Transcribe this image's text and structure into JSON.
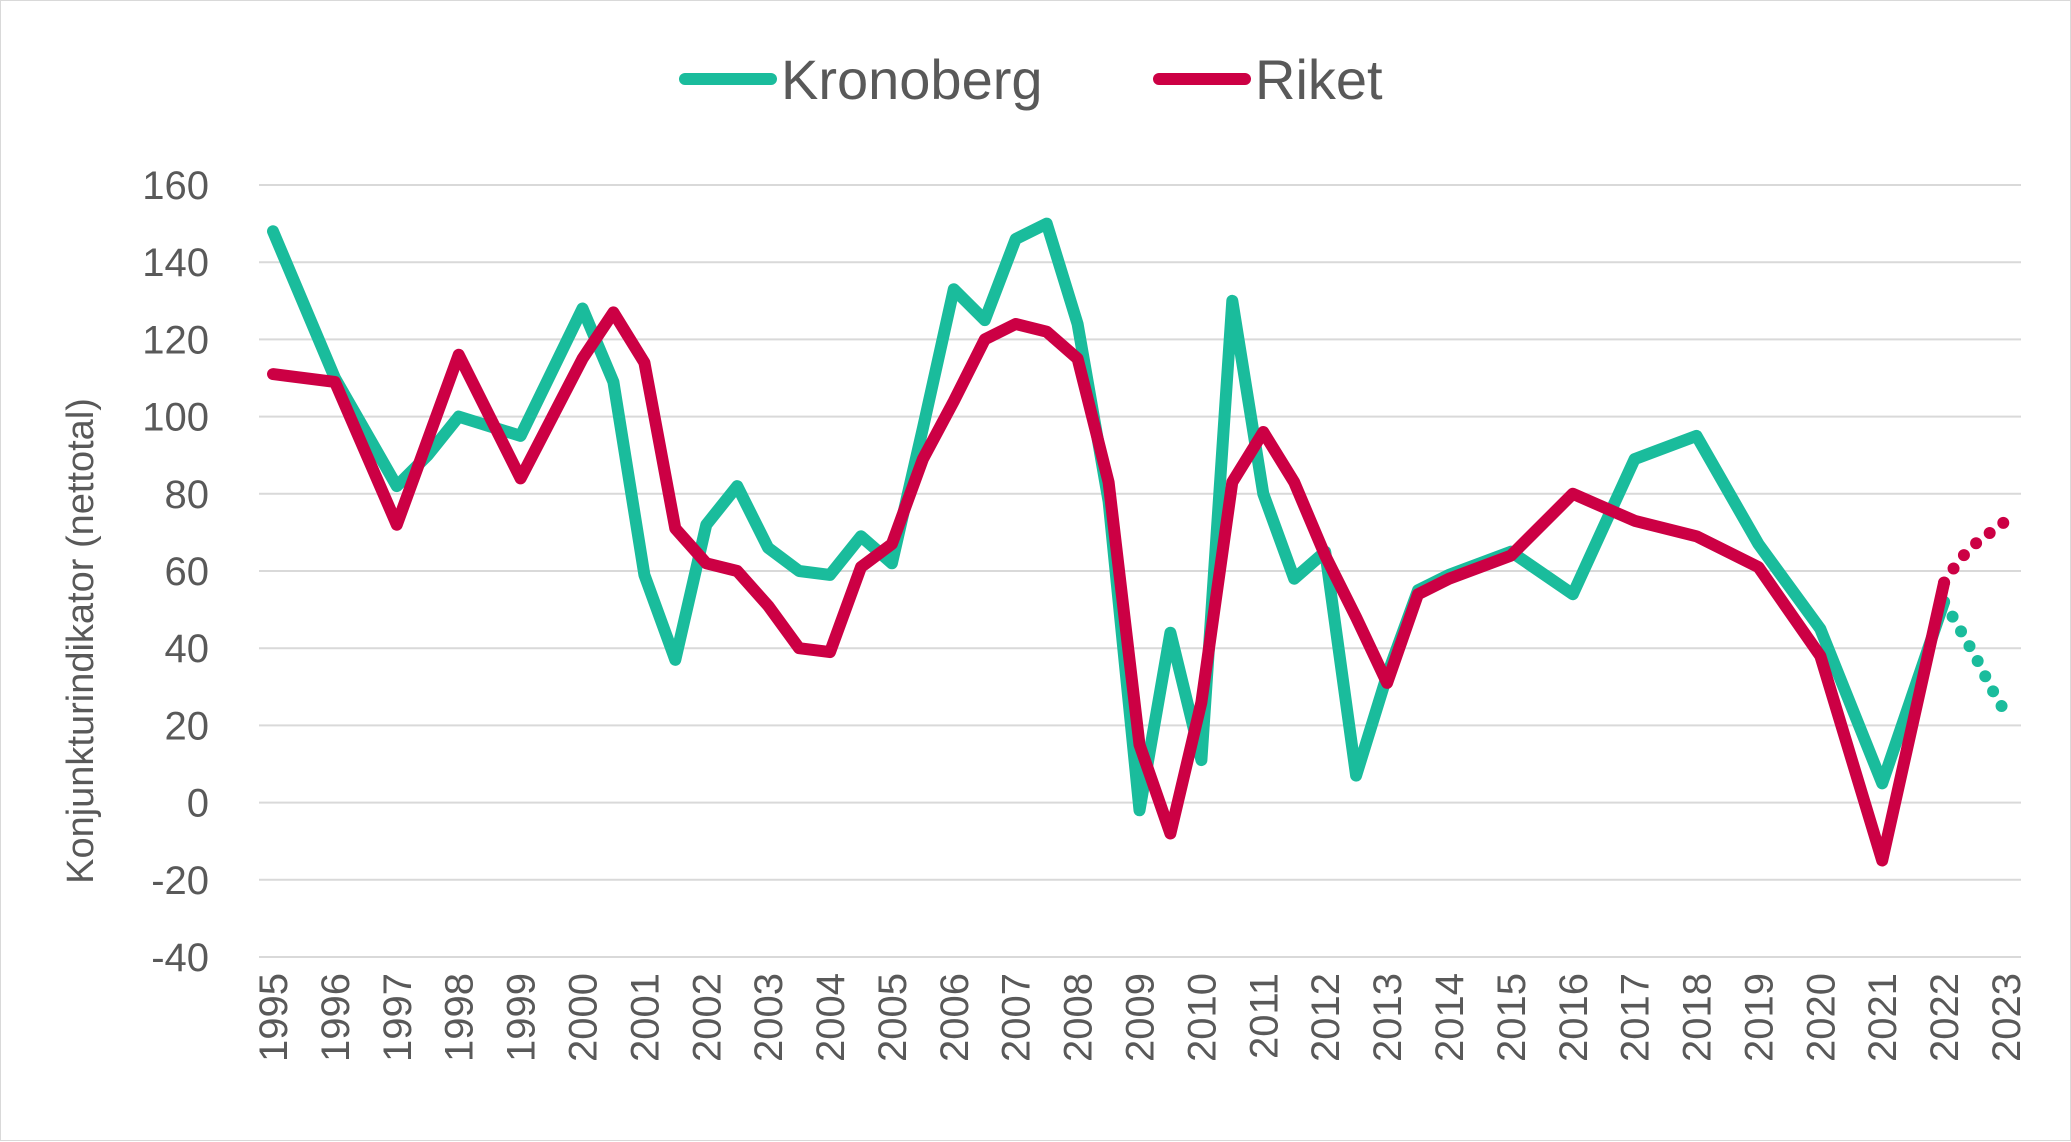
{
  "chart_data": {
    "type": "line",
    "ylabel": "Konjunkturindikator (nettotal)",
    "ylim": [
      -40,
      160
    ],
    "y_ticks": [
      "160",
      "140",
      "120",
      "100",
      "80",
      "60",
      "40",
      "20",
      "0",
      "-20",
      "-40"
    ],
    "x_ticks": [
      "1995",
      "1996",
      "1997",
      "1998",
      "1999",
      "2000",
      "2001",
      "2002",
      "2003",
      "2004",
      "2005",
      "2006",
      "2007",
      "2008",
      "2009",
      "2010",
      "2011",
      "2012",
      "2013",
      "2014",
      "2015",
      "2016",
      "2017",
      "2018",
      "2019",
      "2020",
      "2021",
      "2022",
      "2023"
    ],
    "xlim": [
      1995,
      2023
    ],
    "grid": true,
    "legend_position": "top-center",
    "series": [
      {
        "name": "Kronoberg",
        "color": "#1abc9c",
        "x": [
          1995.0,
          1996.0,
          1997.0,
          1997.5,
          1998.0,
          1999.0,
          2000.0,
          2000.5,
          2001.0,
          2001.5,
          2002.0,
          2002.5,
          2003.0,
          2003.5,
          2004.0,
          2004.5,
          2005.0,
          2005.5,
          2006.0,
          2006.5,
          2007.0,
          2007.5,
          2008.0,
          2008.5,
          2009.0,
          2009.5,
          2010.0,
          2010.5,
          2011.0,
          2011.5,
          2012.0,
          2012.5,
          2013.0,
          2013.5,
          2014.0,
          2015.0,
          2016.0,
          2017.0,
          2018.0,
          2019.0,
          2020.0,
          2021.0,
          2022.0
        ],
        "values": [
          148,
          110,
          82,
          90,
          100,
          95,
          128,
          109,
          59,
          37,
          72,
          82,
          66,
          60,
          59,
          69,
          62,
          97,
          133,
          125,
          146,
          150,
          124,
          78,
          -2,
          44,
          11,
          130,
          80,
          58,
          65,
          7,
          33,
          55,
          59,
          65,
          54,
          89,
          95,
          67,
          45,
          5,
          52
        ],
        "projection": {
          "x": [
            2022.0,
            2022.25,
            2022.5,
            2022.75,
            2023.0
          ],
          "values": [
            52,
            45,
            38,
            30,
            23
          ]
        }
      },
      {
        "name": "Riket",
        "color": "#cc0044",
        "x": [
          1995.0,
          1996.0,
          1997.0,
          1998.0,
          1999.0,
          2000.0,
          2000.5,
          2001.0,
          2001.5,
          2002.0,
          2002.5,
          2003.0,
          2003.5,
          2004.0,
          2004.5,
          2005.0,
          2005.5,
          2006.0,
          2006.5,
          2007.0,
          2007.5,
          2008.0,
          2008.5,
          2009.0,
          2009.5,
          2010.0,
          2010.5,
          2011.0,
          2011.5,
          2012.0,
          2012.5,
          2013.0,
          2013.5,
          2014.0,
          2015.0,
          2016.0,
          2017.0,
          2018.0,
          2019.0,
          2020.0,
          2021.0,
          2022.0
        ],
        "values": [
          111,
          109,
          72,
          116,
          84,
          115,
          127,
          114,
          71,
          62,
          60,
          51,
          40,
          39,
          61,
          67,
          89,
          104,
          120,
          124,
          122,
          115,
          83,
          15,
          -8,
          26,
          83,
          96,
          83,
          64,
          48,
          31,
          54,
          58,
          64,
          80,
          73,
          69,
          61,
          38,
          -15,
          57
        ],
        "projection": {
          "x": [
            2022.0,
            2022.25,
            2022.5,
            2022.75,
            2023.0
          ],
          "values": [
            57,
            63,
            67,
            70,
            73
          ]
        }
      }
    ]
  }
}
